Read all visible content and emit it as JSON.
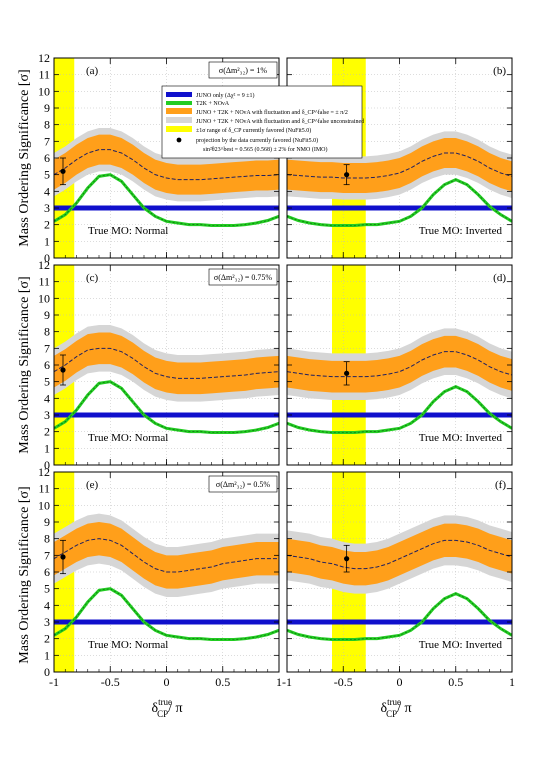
{
  "figure": {
    "ylabel": "Mass Ordering Significance [σ]",
    "xlabel": "δ_CP^true/ π"
  },
  "legend": {
    "items": [
      {
        "key": "juno",
        "text": "JUNO only (Δχ² = 9 ±1)",
        "color": "#1010cc"
      },
      {
        "key": "t2k",
        "text": "T2K + NOνA",
        "color": "#22cc22"
      },
      {
        "key": "fluct_fixed",
        "text": "JUNO + T2K + NOνA  with fluctuation and δ_CP^false = ± π/2",
        "color": "#ff9f1a"
      },
      {
        "key": "fluct_free",
        "text": "JUNO + T2K + NOνA with fluctuation and δ_CP^false unconstrained",
        "color": "#d6d6d6"
      },
      {
        "key": "band",
        "text": "±1σ range of δ_CP currently favored (NuFit5.0)",
        "color": "#ffff00"
      },
      {
        "key": "proj",
        "text": "projection by the data currently favored (NuFit5.0)",
        "color": "#000000"
      },
      {
        "key": "proj2",
        "text": "sin²θ23^best = 0.565 (0.568) ± 2% for NMO (IMO)",
        "color": ""
      }
    ]
  },
  "chart_data": [
    {
      "type": "line",
      "panel": "(a)",
      "mass_ordering": "True MO: Normal",
      "sigma_label": "σ(Δm²₃₂) = 1%",
      "xlim": [
        -1,
        1
      ],
      "ylim": [
        0,
        12
      ],
      "grid": true,
      "highlight_band": [
        -1,
        -0.82
      ],
      "x": [
        -1,
        -0.9,
        -0.8,
        -0.7,
        -0.6,
        -0.5,
        -0.4,
        -0.3,
        -0.2,
        -0.1,
        0,
        0.1,
        0.2,
        0.3,
        0.4,
        0.5,
        0.6,
        0.7,
        0.8,
        0.9,
        1
      ],
      "series": [
        {
          "name": "JUNO only",
          "values": [
            3,
            3,
            3,
            3,
            3,
            3,
            3,
            3,
            3,
            3,
            3,
            3,
            3,
            3,
            3,
            3,
            3,
            3,
            3,
            3,
            3
          ]
        },
        {
          "name": "T2K + NOνA",
          "values": [
            2.2,
            2.6,
            3.3,
            4.2,
            4.9,
            5.0,
            4.6,
            3.8,
            3.0,
            2.5,
            2.2,
            2.1,
            2.0,
            2.0,
            1.95,
            1.95,
            1.95,
            2.0,
            2.1,
            2.25,
            2.5
          ]
        },
        {
          "name": "central",
          "values": [
            5.0,
            5.4,
            5.9,
            6.3,
            6.5,
            6.5,
            6.3,
            5.9,
            5.4,
            5.0,
            4.8,
            4.7,
            4.7,
            4.7,
            4.75,
            4.8,
            4.85,
            4.9,
            4.95,
            4.95,
            5.0
          ]
        },
        {
          "name": "orange_halfwidth",
          "values": [
            0.9,
            0.9,
            0.9,
            0.9,
            0.9,
            0.9,
            0.9,
            0.9,
            0.9,
            0.9,
            0.9,
            0.9,
            0.9,
            0.9,
            0.9,
            0.9,
            0.9,
            0.9,
            0.9,
            0.9,
            0.9
          ]
        },
        {
          "name": "gray_halfwidth",
          "values": [
            1.3,
            1.3,
            1.3,
            1.3,
            1.3,
            1.3,
            1.3,
            1.3,
            1.3,
            1.3,
            1.3,
            1.3,
            1.3,
            1.3,
            1.3,
            1.3,
            1.3,
            1.3,
            1.3,
            1.3,
            1.3
          ]
        }
      ],
      "point": {
        "x": -0.92,
        "y": 5.2,
        "err": 0.8
      }
    },
    {
      "type": "line",
      "panel": "(b)",
      "mass_ordering": "True MO: Inverted",
      "sigma_label": "",
      "xlim": [
        -1,
        1
      ],
      "ylim": [
        0,
        12
      ],
      "grid": true,
      "highlight_band": [
        -0.6,
        -0.3
      ],
      "x": [
        -1,
        -0.9,
        -0.8,
        -0.7,
        -0.6,
        -0.5,
        -0.4,
        -0.3,
        -0.2,
        -0.1,
        0,
        0.1,
        0.2,
        0.3,
        0.4,
        0.5,
        0.6,
        0.7,
        0.8,
        0.9,
        1
      ],
      "series": [
        {
          "name": "JUNO only",
          "values": [
            3,
            3,
            3,
            3,
            3,
            3,
            3,
            3,
            3,
            3,
            3,
            3,
            3,
            3,
            3,
            3,
            3,
            3,
            3,
            3,
            3
          ]
        },
        {
          "name": "T2K + NOνA",
          "values": [
            2.5,
            2.25,
            2.1,
            2.0,
            1.95,
            1.95,
            1.95,
            2.0,
            2.0,
            2.1,
            2.2,
            2.5,
            3.0,
            3.8,
            4.4,
            4.7,
            4.4,
            3.8,
            3.1,
            2.6,
            2.2
          ]
        },
        {
          "name": "central",
          "values": [
            5.0,
            4.95,
            4.9,
            4.85,
            4.85,
            4.8,
            4.8,
            4.8,
            4.85,
            4.95,
            5.1,
            5.4,
            5.8,
            6.1,
            6.3,
            6.3,
            6.1,
            5.8,
            5.4,
            5.1,
            4.9
          ]
        },
        {
          "name": "orange_halfwidth",
          "values": [
            0.9,
            0.9,
            0.9,
            0.9,
            0.9,
            0.9,
            0.9,
            0.9,
            0.9,
            0.9,
            0.9,
            0.9,
            0.9,
            0.9,
            0.9,
            0.9,
            0.9,
            0.9,
            0.9,
            0.9,
            0.9
          ]
        },
        {
          "name": "gray_halfwidth",
          "values": [
            1.3,
            1.3,
            1.3,
            1.3,
            1.3,
            1.3,
            1.3,
            1.3,
            1.3,
            1.3,
            1.3,
            1.3,
            1.3,
            1.3,
            1.3,
            1.3,
            1.3,
            1.3,
            1.3,
            1.3,
            1.3
          ]
        }
      ],
      "point": {
        "x": -0.47,
        "y": 5.0,
        "err": 0.6
      }
    },
    {
      "type": "line",
      "panel": "(c)",
      "mass_ordering": "True MO: Normal",
      "sigma_label": "σ(Δm²₃₂) = 0.75%",
      "xlim": [
        -1,
        1
      ],
      "ylim": [
        0,
        12
      ],
      "grid": true,
      "highlight_band": [
        -1,
        -0.82
      ],
      "x": [
        -1,
        -0.9,
        -0.8,
        -0.7,
        -0.6,
        -0.5,
        -0.4,
        -0.3,
        -0.2,
        -0.1,
        0,
        0.1,
        0.2,
        0.3,
        0.4,
        0.5,
        0.6,
        0.7,
        0.8,
        0.9,
        1
      ],
      "series": [
        {
          "name": "JUNO only",
          "values": [
            3,
            3,
            3,
            3,
            3,
            3,
            3,
            3,
            3,
            3,
            3,
            3,
            3,
            3,
            3,
            3,
            3,
            3,
            3,
            3,
            3
          ]
        },
        {
          "name": "T2K + NOνA",
          "values": [
            2.2,
            2.6,
            3.3,
            4.2,
            4.9,
            5.0,
            4.6,
            3.8,
            3.0,
            2.5,
            2.2,
            2.1,
            2.0,
            2.0,
            1.95,
            1.95,
            1.95,
            2.0,
            2.1,
            2.25,
            2.5
          ]
        },
        {
          "name": "central",
          "values": [
            5.6,
            6.0,
            6.5,
            6.9,
            7.0,
            7.0,
            6.8,
            6.4,
            5.9,
            5.5,
            5.3,
            5.2,
            5.2,
            5.2,
            5.25,
            5.3,
            5.35,
            5.4,
            5.5,
            5.55,
            5.6
          ]
        },
        {
          "name": "orange_halfwidth",
          "values": [
            0.95,
            0.95,
            0.95,
            0.95,
            0.95,
            0.95,
            0.95,
            0.95,
            0.95,
            0.95,
            0.95,
            0.95,
            0.95,
            0.95,
            0.95,
            0.95,
            0.95,
            0.95,
            0.95,
            0.95,
            0.95
          ]
        },
        {
          "name": "gray_halfwidth",
          "values": [
            1.4,
            1.4,
            1.4,
            1.4,
            1.4,
            1.4,
            1.4,
            1.4,
            1.4,
            1.4,
            1.4,
            1.4,
            1.4,
            1.4,
            1.4,
            1.4,
            1.4,
            1.4,
            1.4,
            1.4,
            1.4
          ]
        }
      ],
      "point": {
        "x": -0.92,
        "y": 5.7,
        "err": 0.9
      }
    },
    {
      "type": "line",
      "panel": "(d)",
      "mass_ordering": "True MO: Inverted",
      "sigma_label": "",
      "xlim": [
        -1,
        1
      ],
      "ylim": [
        0,
        12
      ],
      "grid": true,
      "highlight_band": [
        -0.6,
        -0.3
      ],
      "x": [
        -1,
        -0.9,
        -0.8,
        -0.7,
        -0.6,
        -0.5,
        -0.4,
        -0.3,
        -0.2,
        -0.1,
        0,
        0.1,
        0.2,
        0.3,
        0.4,
        0.5,
        0.6,
        0.7,
        0.8,
        0.9,
        1
      ],
      "series": [
        {
          "name": "JUNO only",
          "values": [
            3,
            3,
            3,
            3,
            3,
            3,
            3,
            3,
            3,
            3,
            3,
            3,
            3,
            3,
            3,
            3,
            3,
            3,
            3,
            3,
            3
          ]
        },
        {
          "name": "T2K + NOνA",
          "values": [
            2.5,
            2.25,
            2.1,
            2.0,
            1.95,
            1.95,
            1.95,
            2.0,
            2.0,
            2.1,
            2.2,
            2.5,
            3.0,
            3.8,
            4.4,
            4.7,
            4.4,
            3.8,
            3.1,
            2.6,
            2.2
          ]
        },
        {
          "name": "central",
          "values": [
            5.6,
            5.5,
            5.4,
            5.35,
            5.3,
            5.3,
            5.3,
            5.3,
            5.35,
            5.45,
            5.6,
            5.9,
            6.3,
            6.6,
            6.8,
            6.8,
            6.6,
            6.3,
            5.9,
            5.6,
            5.4
          ]
        },
        {
          "name": "orange_halfwidth",
          "values": [
            0.95,
            0.95,
            0.95,
            0.95,
            0.95,
            0.95,
            0.95,
            0.95,
            0.95,
            0.95,
            0.95,
            0.95,
            0.95,
            0.95,
            0.95,
            0.95,
            0.95,
            0.95,
            0.95,
            0.95,
            0.95
          ]
        },
        {
          "name": "gray_halfwidth",
          "values": [
            1.4,
            1.4,
            1.4,
            1.4,
            1.4,
            1.4,
            1.4,
            1.4,
            1.4,
            1.4,
            1.4,
            1.4,
            1.4,
            1.4,
            1.4,
            1.4,
            1.4,
            1.4,
            1.4,
            1.4,
            1.4
          ]
        }
      ],
      "point": {
        "x": -0.47,
        "y": 5.5,
        "err": 0.7
      }
    },
    {
      "type": "line",
      "panel": "(e)",
      "mass_ordering": "True MO: Normal",
      "sigma_label": "σ(Δm²₃₂) = 0.5%",
      "xlim": [
        -1,
        1
      ],
      "ylim": [
        0,
        12
      ],
      "grid": true,
      "highlight_band": [
        -1,
        -0.82
      ],
      "x": [
        -1,
        -0.9,
        -0.8,
        -0.7,
        -0.6,
        -0.5,
        -0.4,
        -0.3,
        -0.2,
        -0.1,
        0,
        0.1,
        0.2,
        0.3,
        0.4,
        0.5,
        0.6,
        0.7,
        0.8,
        0.9,
        1
      ],
      "series": [
        {
          "name": "JUNO only",
          "values": [
            3,
            3,
            3,
            3,
            3,
            3,
            3,
            3,
            3,
            3,
            3,
            3,
            3,
            3,
            3,
            3,
            3,
            3,
            3,
            3,
            3
          ]
        },
        {
          "name": "T2K + NOνA",
          "values": [
            2.2,
            2.6,
            3.3,
            4.2,
            4.9,
            5.0,
            4.6,
            3.8,
            3.0,
            2.5,
            2.2,
            2.1,
            2.0,
            2.0,
            1.95,
            1.95,
            1.95,
            2.0,
            2.1,
            2.25,
            2.5
          ]
        },
        {
          "name": "central",
          "values": [
            6.8,
            7.2,
            7.6,
            7.9,
            8.0,
            7.9,
            7.6,
            7.1,
            6.6,
            6.2,
            6.0,
            6.0,
            6.1,
            6.2,
            6.3,
            6.5,
            6.6,
            6.7,
            6.8,
            6.8,
            6.8
          ]
        },
        {
          "name": "orange_halfwidth",
          "values": [
            1.0,
            1.0,
            1.0,
            1.0,
            1.0,
            1.0,
            1.0,
            1.0,
            1.0,
            1.0,
            1.0,
            1.0,
            1.0,
            1.0,
            1.0,
            1.0,
            1.0,
            1.0,
            1.0,
            1.0,
            1.0
          ]
        },
        {
          "name": "gray_halfwidth",
          "values": [
            1.5,
            1.5,
            1.5,
            1.5,
            1.5,
            1.5,
            1.5,
            1.5,
            1.5,
            1.5,
            1.5,
            1.5,
            1.5,
            1.5,
            1.5,
            1.5,
            1.5,
            1.5,
            1.5,
            1.5,
            1.5
          ]
        }
      ],
      "point": {
        "x": -0.92,
        "y": 6.9,
        "err": 1.0
      }
    },
    {
      "type": "line",
      "panel": "(f)",
      "mass_ordering": "True MO: Inverted",
      "sigma_label": "",
      "xlim": [
        -1,
        1
      ],
      "ylim": [
        0,
        12
      ],
      "grid": true,
      "highlight_band": [
        -0.6,
        -0.3
      ],
      "x": [
        -1,
        -0.9,
        -0.8,
        -0.7,
        -0.6,
        -0.5,
        -0.4,
        -0.3,
        -0.2,
        -0.1,
        0,
        0.1,
        0.2,
        0.3,
        0.4,
        0.5,
        0.6,
        0.7,
        0.8,
        0.9,
        1
      ],
      "series": [
        {
          "name": "JUNO only",
          "values": [
            3,
            3,
            3,
            3,
            3,
            3,
            3,
            3,
            3,
            3,
            3,
            3,
            3,
            3,
            3,
            3,
            3,
            3,
            3,
            3,
            3
          ]
        },
        {
          "name": "T2K + NOνA",
          "values": [
            2.5,
            2.25,
            2.1,
            2.0,
            1.95,
            1.95,
            1.95,
            2.0,
            2.0,
            2.1,
            2.2,
            2.5,
            3.0,
            3.8,
            4.4,
            4.7,
            4.4,
            3.8,
            3.1,
            2.6,
            2.2
          ]
        },
        {
          "name": "central",
          "values": [
            7.0,
            6.9,
            6.8,
            6.6,
            6.5,
            6.3,
            6.2,
            6.2,
            6.3,
            6.5,
            6.8,
            7.1,
            7.4,
            7.7,
            7.9,
            7.9,
            7.8,
            7.6,
            7.3,
            7.1,
            6.9
          ]
        },
        {
          "name": "orange_halfwidth",
          "values": [
            1.0,
            1.0,
            1.0,
            1.0,
            1.0,
            1.0,
            1.0,
            1.0,
            1.0,
            1.0,
            1.0,
            1.0,
            1.0,
            1.0,
            1.0,
            1.0,
            1.0,
            1.0,
            1.0,
            1.0,
            1.0
          ]
        },
        {
          "name": "gray_halfwidth",
          "values": [
            1.5,
            1.5,
            1.5,
            1.5,
            1.5,
            1.5,
            1.5,
            1.5,
            1.5,
            1.5,
            1.5,
            1.5,
            1.5,
            1.5,
            1.5,
            1.5,
            1.5,
            1.5,
            1.5,
            1.5,
            1.5
          ]
        }
      ],
      "point": {
        "x": -0.47,
        "y": 6.8,
        "err": 0.8
      }
    }
  ]
}
